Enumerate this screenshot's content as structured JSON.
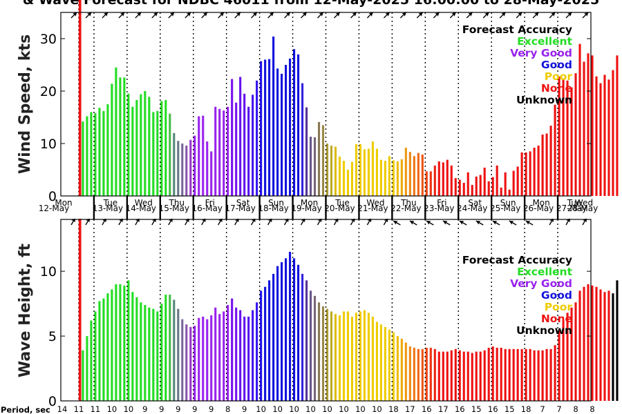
{
  "title": "& Wave Forecast for NDBC 46011 from 12-May-2025 16:00:00 to 28-May-2025",
  "colors": {
    "excellent": "#22dd22",
    "very_good": "#9922ee",
    "good": "#1111dd",
    "poor": "#eecc00",
    "none": "#ee1111",
    "unknown": "#000000"
  },
  "legend": {
    "heading": "Forecast Accuracy",
    "entries": [
      {
        "label": "Excellent",
        "color": "#22dd22"
      },
      {
        "label": "Very Good",
        "color": "#9922ee"
      },
      {
        "label": "Good",
        "color": "#1111dd"
      },
      {
        "label": "Poor",
        "color": "#eecc00"
      },
      {
        "label": "None",
        "color": "#ee1111"
      },
      {
        "label": "Unknown",
        "color": "#000000"
      }
    ]
  },
  "day_labels": [
    {
      "dow": "Mon",
      "date": "12-May"
    },
    {
      "dow": "Tue",
      "date": "13-May"
    },
    {
      "dow": "Wed",
      "date": "14-May"
    },
    {
      "dow": "Thu",
      "date": "15-May"
    },
    {
      "dow": "Fri",
      "date": "16-May"
    },
    {
      "dow": "Sat",
      "date": "17-May"
    },
    {
      "dow": "Sun",
      "date": "18-May"
    },
    {
      "dow": "Mon",
      "date": "19-May"
    },
    {
      "dow": "Tue",
      "date": "20-May"
    },
    {
      "dow": "Wed",
      "date": "21-May"
    },
    {
      "dow": "Thu",
      "date": "22-May"
    },
    {
      "dow": "Fri",
      "date": "23-May"
    },
    {
      "dow": "Sat",
      "date": "24-May"
    },
    {
      "dow": "Sun",
      "date": "25-May"
    },
    {
      "dow": "Mon",
      "date": "26-May"
    },
    {
      "dow": "Tue",
      "date": "27-May"
    },
    {
      "dow": "Wed",
      "date": "28-May"
    }
  ],
  "period_label": "Period, sec",
  "period_values": [
    "14",
    "11",
    "11",
    "10",
    "10",
    "9",
    "9",
    "9",
    "9",
    "9",
    "8",
    "9",
    "10",
    "10",
    "10",
    "10",
    "10",
    "10",
    "10",
    "10",
    "18",
    "17",
    "16",
    "17",
    "16",
    "15",
    "16",
    "15",
    "18",
    "7",
    "7",
    "8",
    "8"
  ],
  "chart_data": [
    {
      "type": "bar",
      "ylabel": "Wind Speed, kts",
      "ylim": [
        0,
        35
      ],
      "yticks": [
        0,
        10,
        20,
        30
      ],
      "x_unit": "day index (0 = 12-May 00:00)",
      "x_start": 0.6667,
      "x_step": 0.125,
      "values": [
        14.2,
        15.2,
        16.0,
        15.8,
        16.8,
        16.2,
        17.5,
        21.4,
        24.5,
        22.6,
        22.6,
        19.5,
        17.0,
        18.3,
        19.4,
        20.0,
        18.9,
        16.0,
        16.2,
        18.1,
        18.3,
        15.7,
        12.0,
        10.5,
        10.0,
        9.6,
        10.7,
        11.5,
        15.2,
        15.3,
        10.4,
        8.5,
        17.0,
        16.6,
        16.3,
        17.0,
        22.3,
        17.8,
        22.7,
        19.5,
        17.0,
        19.3,
        22.0,
        25.7,
        26.0,
        26.1,
        30.4,
        24.3,
        23.3,
        25.0,
        26.2,
        28.0,
        27.0,
        21.5,
        16.9,
        11.3,
        11.2,
        14.1,
        13.5,
        10.0,
        9.6,
        9.4,
        7.5,
        6.7,
        5.0,
        6.5,
        9.9,
        9.9,
        8.9,
        9.0,
        10.4,
        9.0,
        6.9,
        6.7,
        7.6,
        6.8,
        6.6,
        7.0,
        9.2,
        8.4,
        7.6,
        8.2,
        7.9,
        4.7,
        4.7,
        5.8,
        6.6,
        6.4,
        6.9,
        5.8,
        3.4,
        3.1,
        2.5,
        4.5,
        2.1,
        3.7,
        4.0,
        5.4,
        2.8,
        3.6,
        5.8,
        1.6,
        4.5,
        1.2,
        4.8,
        5.6,
        8.3,
        8.3,
        8.5,
        9.2,
        9.6,
        11.7,
        11.9,
        13.4,
        17.4,
        22.8,
        22.4,
        22.0,
        20.7,
        23.4,
        29.0,
        25.6,
        27.2,
        26.8,
        22.8,
        21.5,
        23.1,
        22.2,
        24.0,
        26.8
      ],
      "colors": [
        "#22dd22",
        "#22dd22",
        "#22dd22",
        "#22dd22",
        "#22dd22",
        "#22dd22",
        "#22dd22",
        "#22dd22",
        "#22dd22",
        "#22dd22",
        "#22dd22",
        "#22dd22",
        "#22dd22",
        "#22dd22",
        "#22dd22",
        "#22dd22",
        "#22dd22",
        "#22dd22",
        "#22dd22",
        "#22dd22",
        "#22dd22",
        "#44bb44",
        "#558877",
        "#667788",
        "#776699",
        "#8855aa",
        "#9933cc",
        "#9922ee",
        "#9922ee",
        "#9922ee",
        "#9922ee",
        "#9922ee",
        "#9922ee",
        "#9922ee",
        "#9922ee",
        "#9922ee",
        "#7711ee",
        "#7711ee",
        "#6611ee",
        "#6611ee",
        "#5511ee",
        "#4411ee",
        "#3311ee",
        "#2211ee",
        "#1111dd",
        "#1111dd",
        "#1111dd",
        "#1111dd",
        "#1111dd",
        "#1111dd",
        "#1111dd",
        "#1111dd",
        "#1111dd",
        "#3322dd",
        "#553399",
        "#665588",
        "#776677",
        "#887755",
        "#998844",
        "#aa9933",
        "#bbaa22",
        "#ddbb11",
        "#eecc00",
        "#eecc00",
        "#eecc00",
        "#eecc00",
        "#eecc00",
        "#eecc00",
        "#eecc00",
        "#eecc00",
        "#eecc00",
        "#eecc00",
        "#eecc00",
        "#eecc00",
        "#eecc00",
        "#eecc00",
        "#eebb00",
        "#eeaa00",
        "#ee9911",
        "#ee8811",
        "#ee7711",
        "#ee6611",
        "#ee5511",
        "#ee4411",
        "#ee3311",
        "#ee2211",
        "#ee1111",
        "#ee1111",
        "#ee1111",
        "#ee1111",
        "#ee1111",
        "#ee1111",
        "#ee1111",
        "#ee1111",
        "#ee1111",
        "#ee1111",
        "#ee1111",
        "#ee1111",
        "#ee1111",
        "#ee1111",
        "#ee1111",
        "#ee1111",
        "#ee1111",
        "#ee1111",
        "#ee1111",
        "#ee1111",
        "#ee1111",
        "#ee1111",
        "#ee1111",
        "#ee1111",
        "#ee1111",
        "#ee1111",
        "#ee1111",
        "#ee1111",
        "#ee1111",
        "#ee1111",
        "#ee1111",
        "#ee1111",
        "#ee1111",
        "#ee1111",
        "#ee1111",
        "#ee1111",
        "#ee1111",
        "#ee1111",
        "#ee1111",
        "#ee1111",
        "#ee1111",
        "#ee1111",
        "#ee1111",
        "#ee1111"
      ]
    },
    {
      "type": "bar",
      "ylabel": "Wave Height, ft",
      "ylim": [
        0,
        14
      ],
      "yticks": [
        0,
        5,
        10
      ],
      "x_unit": "day index (0 = 12-May 00:00)",
      "x_start": 0.6667,
      "x_step": 0.125,
      "values": [
        3.9,
        5.0,
        6.2,
        6.9,
        7.7,
        7.9,
        8.3,
        8.6,
        9.0,
        9.0,
        8.9,
        9.3,
        8.4,
        8.0,
        7.6,
        7.4,
        7.2,
        7.1,
        6.9,
        7.5,
        8.2,
        8.2,
        7.8,
        7.1,
        6.3,
        5.9,
        5.7,
        5.8,
        6.4,
        6.5,
        6.3,
        6.6,
        7.2,
        6.7,
        6.9,
        7.4,
        7.9,
        7.2,
        7.0,
        6.5,
        6.5,
        7.0,
        7.6,
        8.5,
        8.8,
        9.3,
        9.8,
        10.4,
        10.7,
        11.0,
        11.5,
        11.0,
        10.5,
        9.8,
        9.3,
        8.5,
        8.1,
        7.6,
        7.3,
        7.1,
        6.9,
        6.7,
        6.6,
        6.9,
        6.9,
        6.5,
        6.8,
        6.9,
        7.0,
        6.8,
        6.5,
        6.1,
        5.9,
        5.7,
        5.5,
        5.3,
        5.0,
        4.8,
        4.5,
        4.2,
        4.1,
        4.0,
        4.0,
        4.1,
        4.1,
        4.0,
        3.8,
        3.8,
        3.8,
        3.9,
        4.0,
        3.9,
        3.8,
        3.8,
        3.7,
        3.8,
        3.8,
        3.9,
        4.1,
        4.2,
        4.1,
        4.1,
        4.0,
        4.0,
        4.0,
        4.0,
        4.0,
        4.0,
        4.0,
        3.9,
        3.9,
        3.9,
        4.0,
        4.0,
        4.3,
        5.5,
        6.2,
        6.8,
        7.2,
        7.6,
        8.5,
        8.8,
        9.0,
        8.9,
        8.8,
        8.6,
        8.4,
        8.5,
        8.3,
        9.3
      ],
      "colors": [
        "#22dd22",
        "#22dd22",
        "#22dd22",
        "#22dd22",
        "#22dd22",
        "#22dd22",
        "#22dd22",
        "#22dd22",
        "#22dd22",
        "#22dd22",
        "#22dd22",
        "#22dd22",
        "#22dd22",
        "#22dd22",
        "#22dd22",
        "#22dd22",
        "#22dd22",
        "#22dd22",
        "#22dd22",
        "#22dd22",
        "#22dd22",
        "#44bb44",
        "#558877",
        "#667788",
        "#776699",
        "#8855aa",
        "#9933cc",
        "#9922ee",
        "#9922ee",
        "#9922ee",
        "#9922ee",
        "#9922ee",
        "#9922ee",
        "#9922ee",
        "#9922ee",
        "#9922ee",
        "#7711ee",
        "#7711ee",
        "#6611ee",
        "#6611ee",
        "#5511ee",
        "#4411ee",
        "#3311ee",
        "#2211ee",
        "#1111dd",
        "#1111dd",
        "#1111dd",
        "#1111dd",
        "#1111dd",
        "#1111dd",
        "#1111dd",
        "#1111dd",
        "#1111dd",
        "#3322dd",
        "#553399",
        "#665588",
        "#776677",
        "#887755",
        "#998844",
        "#aa9933",
        "#bbaa22",
        "#ddbb11",
        "#eecc00",
        "#eecc00",
        "#eecc00",
        "#eecc00",
        "#eecc00",
        "#eecc00",
        "#eecc00",
        "#eecc00",
        "#eecc00",
        "#eecc00",
        "#eecc00",
        "#eecc00",
        "#eecc00",
        "#eecc00",
        "#eebb00",
        "#eeaa00",
        "#ee9911",
        "#ee8811",
        "#ee7711",
        "#ee6611",
        "#ee5511",
        "#ee4411",
        "#ee3311",
        "#ee2211",
        "#ee1111",
        "#ee1111",
        "#ee1111",
        "#ee1111",
        "#ee1111",
        "#ee1111",
        "#ee1111",
        "#ee1111",
        "#ee1111",
        "#ee1111",
        "#ee1111",
        "#ee1111",
        "#ee1111",
        "#ee1111",
        "#ee1111",
        "#ee1111",
        "#ee1111",
        "#ee1111",
        "#ee1111",
        "#ee1111",
        "#ee1111",
        "#ee1111",
        "#ee1111",
        "#ee1111",
        "#ee1111",
        "#ee1111",
        "#ee1111",
        "#ee1111",
        "#ee1111",
        "#ee1111",
        "#ee1111",
        "#ee1111",
        "#ee1111",
        "#ee1111",
        "#ee1111",
        "#ee1111",
        "#ee1111",
        "#ee1111",
        "#ee1111",
        "#ee1111",
        "#ee1111",
        "#ee1111"
      ]
    }
  ],
  "now_marker_day": 0.58,
  "arrows": {
    "wind_directions_deg": [
      315,
      315,
      315,
      315,
      315,
      315,
      315,
      315,
      315,
      315,
      315,
      315,
      315,
      315,
      315,
      315,
      315,
      315,
      315,
      315,
      315,
      315,
      315,
      315,
      315,
      315,
      315,
      315,
      315,
      315,
      315,
      315,
      315
    ],
    "wave_directions_deg": [
      300,
      300,
      300,
      300,
      300,
      300,
      300,
      300,
      300,
      300,
      300,
      300,
      300,
      300,
      300,
      300,
      300,
      300,
      300,
      300,
      210,
      210,
      210,
      210,
      210,
      210,
      210,
      210,
      210,
      300,
      300,
      300,
      300
    ]
  }
}
